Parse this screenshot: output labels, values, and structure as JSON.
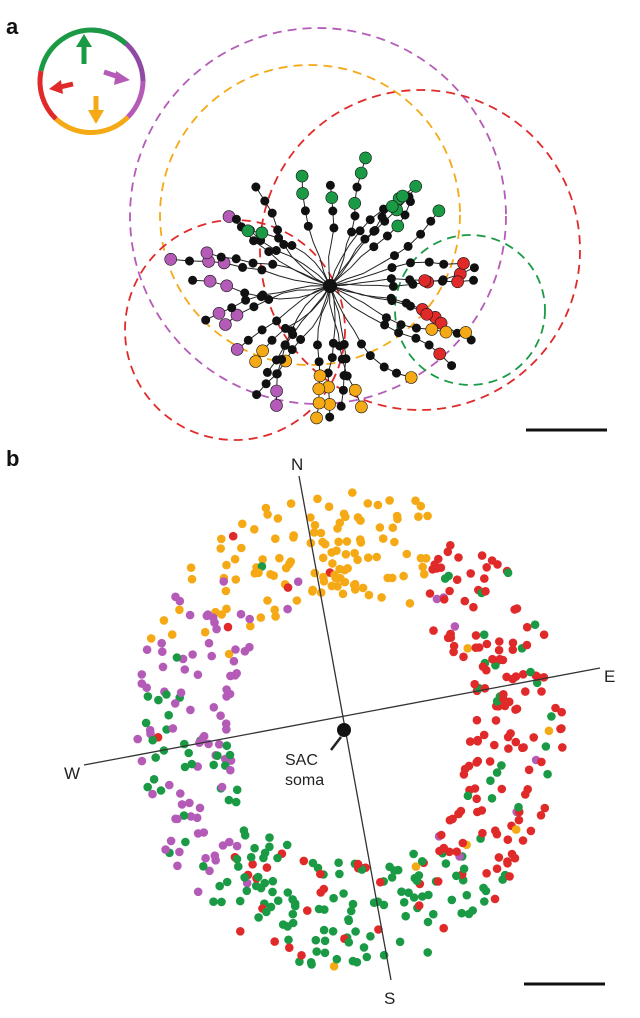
{
  "panels": {
    "a": {
      "label": "a"
    },
    "b": {
      "label": "b"
    }
  },
  "compass": {
    "N": "N",
    "S": "S",
    "E": "E",
    "W": "W"
  },
  "soma": {
    "line1": "SAC",
    "line2": "soma"
  },
  "colors": {
    "north": "#1a9a45",
    "south": "#f5a915",
    "east": "#8f4aa3",
    "west": "#e02a2a",
    "neuron": "#111111",
    "eastMagenta": "#b45bb8"
  },
  "icons": [
    "direction-legend-icon",
    "scale-bar"
  ]
}
